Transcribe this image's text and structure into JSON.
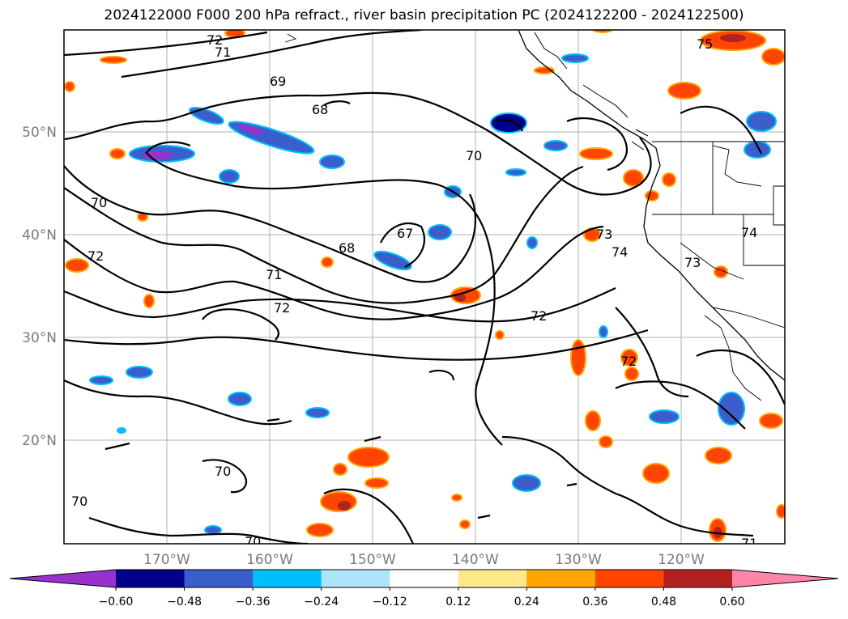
{
  "title": "2024122000 F000 200 hPa refract., river basin precipitation PC (2024122200 - 2024122500)",
  "lat_labels": [
    "50°N",
    "40°N",
    "30°N",
    "20°N"
  ],
  "lon_labels": [
    "170°W",
    "160°W",
    "150°W",
    "140°W",
    "130°W",
    "120°W"
  ],
  "contour_labels": [
    "72",
    "71",
    "69",
    "68",
    "70",
    "75",
    "70",
    "67",
    "68",
    "71",
    "72",
    "72",
    "73",
    "74",
    "74",
    "73",
    "72",
    "72",
    "70",
    "70",
    "70",
    "71"
  ],
  "colorbar": {
    "ticks": [
      "-0.60",
      "-0.48",
      "-0.36",
      "-0.24",
      "-0.12",
      "0.12",
      "0.24",
      "0.36",
      "0.48",
      "0.60"
    ],
    "colors": [
      "#9932cc",
      "#00008b",
      "#3a5fcd",
      "#00bfff",
      "#aee4fa",
      "#ffffff",
      "#fde98a",
      "#ffa500",
      "#ff4500",
      "#b22222",
      "#ff85a8"
    ]
  }
}
